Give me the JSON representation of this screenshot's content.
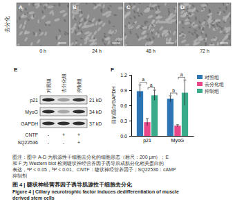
{
  "row_label": "去分化",
  "panels": [
    {
      "label": "A",
      "time": "0 h"
    },
    {
      "label": "B",
      "time": "24 h"
    },
    {
      "label": "C",
      "time": "48 h"
    },
    {
      "label": "D",
      "time": "72 h"
    }
  ],
  "blot": {
    "label": "E",
    "groups": [
      "对照组",
      "去分化组",
      "抑制组"
    ],
    "rows": [
      {
        "name": "p21",
        "size": "21 kD"
      },
      {
        "name": "MyoG",
        "size": "34 kD"
      },
      {
        "name": "GAPDH",
        "size": "37 kD"
      }
    ],
    "treatments": [
      {
        "name": "CNTF",
        "signs": [
          "-",
          "+",
          "+"
        ]
      },
      {
        "name": "SQ22536",
        "signs": [
          "-",
          "-",
          "+"
        ]
      }
    ]
  },
  "chart_panel_label": "F",
  "chart_data": {
    "type": "bar",
    "y_label": "目的蛋白/GAPDH",
    "categories": [
      "p21",
      "MyoG"
    ],
    "series": [
      {
        "name": "对照组",
        "color": "#2e75b6",
        "values": [
          0.88,
          0.73
        ],
        "errors": [
          0.12,
          0.06
        ]
      },
      {
        "name": "去分化组",
        "color": "#e8488a",
        "values": [
          0.27,
          0.2
        ],
        "errors": [
          0.07,
          0.02
        ]
      },
      {
        "name": "抑制组",
        "color": "#3aab8a",
        "values": [
          0.8,
          0.85
        ],
        "errors": [
          0.1,
          0.25
        ]
      }
    ],
    "ylim": [
      0,
      1.2
    ],
    "yticks": [
      {
        "value": 0,
        "label": "0.0"
      },
      0.3,
      0.6,
      0.9,
      1.2
    ],
    "legend": "top-right",
    "annotations": [
      {
        "text": "a",
        "category": "p21",
        "between": [
          "对照组",
          "去分化组"
        ]
      },
      {
        "text": "a",
        "category": "p21",
        "between": [
          "去分化组",
          "抑制组"
        ]
      },
      {
        "text": "b",
        "category": "MyoG",
        "between": [
          "对照组",
          "去分化组"
        ]
      },
      {
        "text": "a",
        "category": "MyoG",
        "between": [
          "去分化组",
          "抑制组"
        ]
      }
    ]
  },
  "caption": {
    "lines": [
      [
        {
          "t": "图注：图中 A-D 为肌源性干细胞去分化的细胞形态（标尺：200 μm）；E"
        }
      ],
      [
        {
          "t": "和 F 为 Western blot 检测睫状神经营养因子诱导后成肌分化相关蛋白的"
        }
      ],
      [
        {
          "t": "表达，"
        },
        {
          "t": "a",
          "sup": true
        },
        {
          "t": "P < 0.05，"
        },
        {
          "t": "b",
          "sup": true
        },
        {
          "t": "P < 0.01。CNTF：睫状神经营养因子；SQ22536：cAMP"
        }
      ],
      [
        {
          "t": "抑制剂"
        }
      ]
    ],
    "title_cn": "图 4 | 睫状神经营养因子诱导肌源性干细胞去分化",
    "title_en": [
      "Figure 4 | Ciliary neurotrophic factor induces dedifferentiation of muscle",
      "derived stem cells"
    ]
  }
}
